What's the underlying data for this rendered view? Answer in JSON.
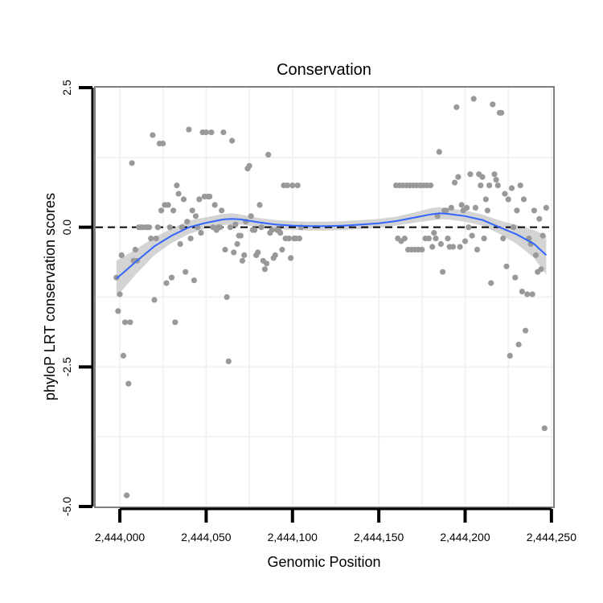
{
  "chart_data": {
    "type": "scatter",
    "title": "Conservation",
    "xlabel": "Genomic Position",
    "ylabel": "phyloP LRT conservation scores",
    "xlim": [
      2443986,
      2444251
    ],
    "ylim": [
      -5.0,
      2.5
    ],
    "x_ticks": [
      2444000,
      2444050,
      2444100,
      2444150,
      2444200,
      2444250
    ],
    "x_tick_labels": [
      "2,444,000",
      "2,444,050",
      "2,444,100",
      "2,444,150",
      "2,444,200",
      "2,444,250"
    ],
    "y_ticks": [
      2.5,
      0.0,
      -2.5,
      -5.0
    ],
    "y_tick_labels": [
      "2.5",
      "0.0",
      "-2.5",
      "-5.0"
    ],
    "grid": true,
    "reference_line": {
      "y": 0.0,
      "style": "dashed"
    },
    "point_color": "#999999",
    "smooth_color": "#3366ff",
    "ribbon_color": "#cccccc",
    "points": [
      [
        2443998,
        -0.9
      ],
      [
        2443999,
        -1.5
      ],
      [
        2444000,
        -1.2
      ],
      [
        2444001,
        -0.5
      ],
      [
        2444002,
        -2.3
      ],
      [
        2444003,
        -1.7
      ],
      [
        2444004,
        -4.8
      ],
      [
        2444005,
        -2.8
      ],
      [
        2444006,
        -1.7
      ],
      [
        2444007,
        1.15
      ],
      [
        2444008,
        -0.6
      ],
      [
        2444009,
        -0.4
      ],
      [
        2444010,
        -0.6
      ],
      [
        2444011,
        0.0
      ],
      [
        2444012,
        0.0
      ],
      [
        2444013,
        0.0
      ],
      [
        2444015,
        0.0
      ],
      [
        2444016,
        0.0
      ],
      [
        2444017,
        0.0
      ],
      [
        2444018,
        -0.2
      ],
      [
        2444019,
        1.65
      ],
      [
        2444020,
        -1.3
      ],
      [
        2444021,
        -0.2
      ],
      [
        2444022,
        0.0
      ],
      [
        2444023,
        1.5
      ],
      [
        2444024,
        0.3
      ],
      [
        2444025,
        1.5
      ],
      [
        2444026,
        0.4
      ],
      [
        2444027,
        -1.0
      ],
      [
        2444028,
        0.4
      ],
      [
        2444029,
        0.0
      ],
      [
        2444030,
        -0.9
      ],
      [
        2444031,
        0.3
      ],
      [
        2444032,
        -1.7
      ],
      [
        2444033,
        0.75
      ],
      [
        2444034,
        0.6
      ],
      [
        2444035,
        -0.3
      ],
      [
        2444036,
        0.0
      ],
      [
        2444037,
        0.5
      ],
      [
        2444038,
        -0.8
      ],
      [
        2444039,
        0.1
      ],
      [
        2444040,
        1.75
      ],
      [
        2444041,
        -0.2
      ],
      [
        2444042,
        0.3
      ],
      [
        2444043,
        -0.95
      ],
      [
        2444044,
        0.2
      ],
      [
        2444045,
        0.0
      ],
      [
        2444046,
        0.5
      ],
      [
        2444047,
        -0.1
      ],
      [
        2444048,
        1.7
      ],
      [
        2444049,
        0.55
      ],
      [
        2444050,
        1.7
      ],
      [
        2444051,
        0.55
      ],
      [
        2444052,
        0.55
      ],
      [
        2444053,
        1.7
      ],
      [
        2444054,
        0.0
      ],
      [
        2444055,
        0.4
      ],
      [
        2444056,
        -0.05
      ],
      [
        2444057,
        0.0
      ],
      [
        2444058,
        0.0
      ],
      [
        2444059,
        0.3
      ],
      [
        2444060,
        1.7
      ],
      [
        2444061,
        -0.4
      ],
      [
        2444062,
        -1.25
      ],
      [
        2444063,
        -2.4
      ],
      [
        2444064,
        0.0
      ],
      [
        2444065,
        1.55
      ],
      [
        2444066,
        -0.45
      ],
      [
        2444067,
        0.05
      ],
      [
        2444068,
        -0.3
      ],
      [
        2444069,
        -0.15
      ],
      [
        2444070,
        -0.15
      ],
      [
        2444071,
        -0.6
      ],
      [
        2444072,
        -0.5
      ],
      [
        2444073,
        0.1
      ],
      [
        2444074,
        1.05
      ],
      [
        2444075,
        1.1
      ],
      [
        2444076,
        0.2
      ],
      [
        2444077,
        -0.05
      ],
      [
        2444078,
        -0.05
      ],
      [
        2444079,
        -0.5
      ],
      [
        2444080,
        -0.45
      ],
      [
        2444081,
        0.4
      ],
      [
        2444082,
        0.0
      ],
      [
        2444083,
        -0.6
      ],
      [
        2444084,
        -0.75
      ],
      [
        2444085,
        -0.65
      ],
      [
        2444086,
        1.3
      ],
      [
        2444087,
        -0.1
      ],
      [
        2444088,
        -0.05
      ],
      [
        2444089,
        -0.55
      ],
      [
        2444090,
        -0.5
      ],
      [
        2444091,
        -0.05
      ],
      [
        2444092,
        -0.05
      ],
      [
        2444093,
        -0.1
      ],
      [
        2444094,
        -0.4
      ],
      [
        2444095,
        0.75
      ],
      [
        2444096,
        -0.2
      ],
      [
        2444097,
        0.75
      ],
      [
        2444098,
        -0.2
      ],
      [
        2444099,
        -0.55
      ],
      [
        2444100,
        0.75
      ],
      [
        2444101,
        -0.2
      ],
      [
        2444102,
        -0.2
      ],
      [
        2444103,
        0.75
      ],
      [
        2444104,
        -0.2
      ],
      [
        2444105,
        0.0
      ],
      [
        2444160,
        0.75
      ],
      [
        2444161,
        -0.2
      ],
      [
        2444162,
        0.75
      ],
      [
        2444163,
        -0.25
      ],
      [
        2444164,
        0.75
      ],
      [
        2444165,
        -0.2
      ],
      [
        2444166,
        0.75
      ],
      [
        2444167,
        -0.4
      ],
      [
        2444168,
        0.75
      ],
      [
        2444169,
        -0.4
      ],
      [
        2444170,
        0.75
      ],
      [
        2444171,
        -0.4
      ],
      [
        2444172,
        0.75
      ],
      [
        2444173,
        -0.4
      ],
      [
        2444174,
        0.75
      ],
      [
        2444175,
        -0.4
      ],
      [
        2444176,
        0.75
      ],
      [
        2444177,
        -0.2
      ],
      [
        2444178,
        0.75
      ],
      [
        2444179,
        -0.2
      ],
      [
        2444180,
        0.75
      ],
      [
        2444181,
        -0.35
      ],
      [
        2444182,
        -0.1
      ],
      [
        2444183,
        -0.2
      ],
      [
        2444184,
        0.2
      ],
      [
        2444185,
        1.35
      ],
      [
        2444186,
        -0.3
      ],
      [
        2444187,
        -0.8
      ],
      [
        2444188,
        0.3
      ],
      [
        2444189,
        0.3
      ],
      [
        2444190,
        -0.2
      ],
      [
        2444191,
        -0.35
      ],
      [
        2444192,
        0.35
      ],
      [
        2444193,
        -0.35
      ],
      [
        2444194,
        0.8
      ],
      [
        2444195,
        2.15
      ],
      [
        2444196,
        0.9
      ],
      [
        2444197,
        -0.35
      ],
      [
        2444198,
        0.4
      ],
      [
        2444199,
        0.3
      ],
      [
        2444200,
        -0.25
      ],
      [
        2444201,
        0.35
      ],
      [
        2444202,
        0.0
      ],
      [
        2444203,
        0.95
      ],
      [
        2444204,
        -0.15
      ],
      [
        2444205,
        2.3
      ],
      [
        2444206,
        0.35
      ],
      [
        2444207,
        -0.4
      ],
      [
        2444208,
        0.95
      ],
      [
        2444209,
        0.75
      ],
      [
        2444210,
        0.9
      ],
      [
        2444211,
        -0.2
      ],
      [
        2444212,
        0.5
      ],
      [
        2444213,
        0.3
      ],
      [
        2444214,
        0.75
      ],
      [
        2444215,
        -1.0
      ],
      [
        2444216,
        2.2
      ],
      [
        2444217,
        0.95
      ],
      [
        2444218,
        0.85
      ],
      [
        2444219,
        0.75
      ],
      [
        2444220,
        2.05
      ],
      [
        2444221,
        2.05
      ],
      [
        2444222,
        -0.2
      ],
      [
        2444223,
        0.6
      ],
      [
        2444224,
        -0.7
      ],
      [
        2444225,
        0.5
      ],
      [
        2444226,
        -2.3
      ],
      [
        2444227,
        0.7
      ],
      [
        2444228,
        0.0
      ],
      [
        2444229,
        -0.9
      ],
      [
        2444230,
        0.3
      ],
      [
        2444231,
        -2.1
      ],
      [
        2444232,
        0.75
      ],
      [
        2444233,
        -1.15
      ],
      [
        2444234,
        0.5
      ],
      [
        2444235,
        -1.85
      ],
      [
        2444236,
        -1.2
      ],
      [
        2444237,
        -0.2
      ],
      [
        2444238,
        -0.3
      ],
      [
        2444239,
        -1.2
      ],
      [
        2444240,
        0.3
      ],
      [
        2444241,
        -0.5
      ],
      [
        2444242,
        -0.8
      ],
      [
        2444243,
        0.15
      ],
      [
        2444244,
        -0.75
      ],
      [
        2444245,
        -0.15
      ],
      [
        2444246,
        -3.6
      ],
      [
        2444247,
        0.35
      ]
    ],
    "smooth": {
      "x": [
        2443998,
        2444010,
        2444020,
        2444030,
        2444040,
        2444050,
        2444060,
        2444065,
        2444070,
        2444080,
        2444090,
        2444100,
        2444110,
        2444120,
        2444130,
        2444140,
        2444150,
        2444160,
        2444170,
        2444180,
        2444185,
        2444190,
        2444200,
        2444210,
        2444220,
        2444230,
        2444240,
        2444247
      ],
      "y": [
        -0.92,
        -0.6,
        -0.34,
        -0.15,
        0.0,
        0.08,
        0.14,
        0.15,
        0.14,
        0.09,
        0.05,
        0.03,
        0.02,
        0.02,
        0.03,
        0.05,
        0.07,
        0.11,
        0.17,
        0.23,
        0.25,
        0.24,
        0.2,
        0.13,
        0.0,
        -0.13,
        -0.3,
        -0.5
      ],
      "lower": [
        -1.25,
        -0.82,
        -0.5,
        -0.28,
        -0.12,
        -0.02,
        0.04,
        0.05,
        0.05,
        0.01,
        -0.03,
        -0.05,
        -0.06,
        -0.06,
        -0.05,
        -0.03,
        -0.01,
        0.03,
        0.08,
        0.12,
        0.14,
        0.14,
        0.1,
        0.03,
        -0.12,
        -0.3,
        -0.55,
        -0.85
      ],
      "upper": [
        -0.6,
        -0.38,
        -0.18,
        -0.02,
        0.12,
        0.18,
        0.24,
        0.25,
        0.23,
        0.17,
        0.13,
        0.11,
        0.1,
        0.1,
        0.11,
        0.13,
        0.15,
        0.19,
        0.26,
        0.34,
        0.36,
        0.34,
        0.3,
        0.23,
        0.12,
        0.04,
        -0.05,
        -0.15
      ]
    }
  }
}
